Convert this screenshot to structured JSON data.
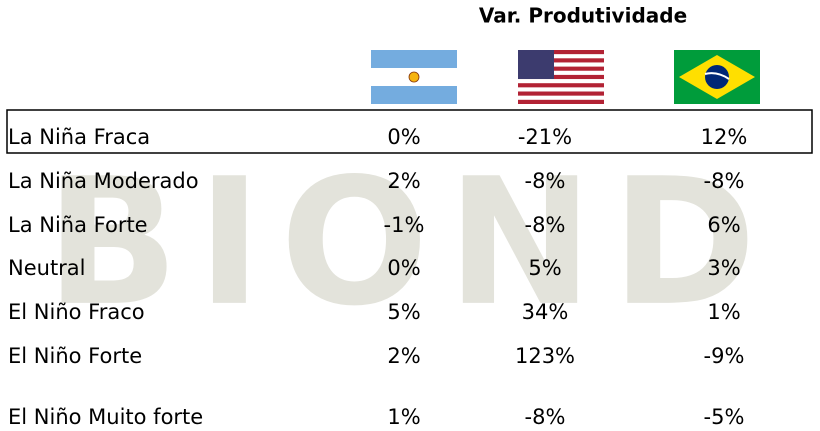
{
  "header": {
    "title": "Var. Produtividade"
  },
  "watermark": "BIOND",
  "table": {
    "rows": [
      [
        "La Niña Fraca",
        "0%",
        "-21%",
        "12%"
      ],
      [
        "La Niña Moderado",
        "2%",
        "-8%",
        "-8%"
      ],
      [
        "La Niña Forte",
        "-1%",
        "-8%",
        "6%"
      ],
      [
        "Neutral",
        "0%",
        "5%",
        "3%"
      ],
      [
        "El Niño Fraco",
        "5%",
        "34%",
        "1%"
      ],
      [
        "El Niño Forte",
        "2%",
        "123%",
        "-9%"
      ],
      [
        "El Niño Muito forte",
        "1%",
        "-8%",
        "-5%"
      ]
    ]
  }
}
